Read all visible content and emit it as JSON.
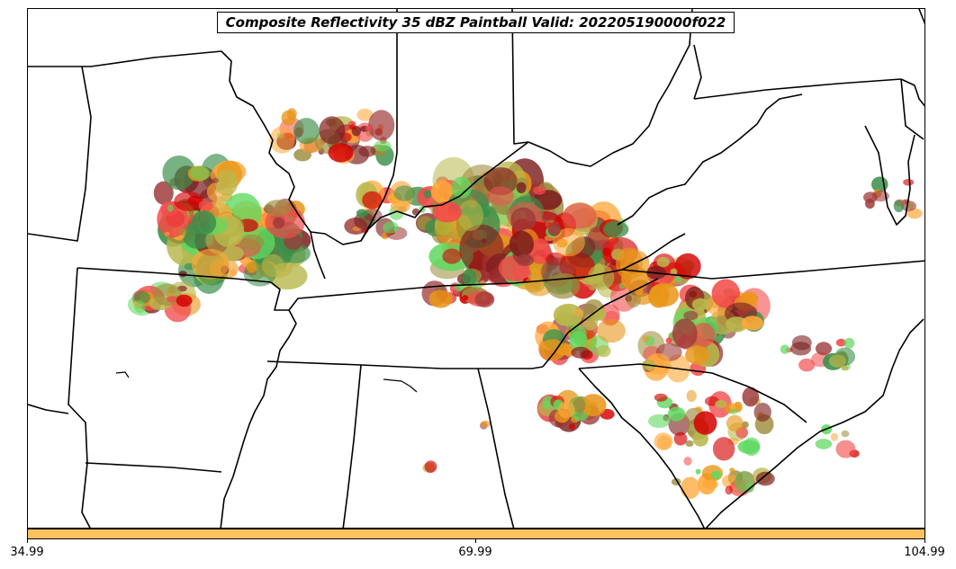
{
  "title": "Composite Reflectivity 35 dBZ Paintball Valid: 202205190000f022",
  "colorbar": {
    "color": "#ffc060",
    "ticks": [
      "34.99",
      "69.99",
      "104.99"
    ]
  },
  "ensemble_colors": [
    "#5fd85f",
    "#e8961a",
    "#f24b4b",
    "#9c8c3c",
    "#7d1f1f",
    "#b8b84c",
    "#ffa83a",
    "#3c8f4a",
    "#9e3a3a",
    "#d40000"
  ],
  "basemap": {
    "boundaries": "US state borders and coastline"
  }
}
